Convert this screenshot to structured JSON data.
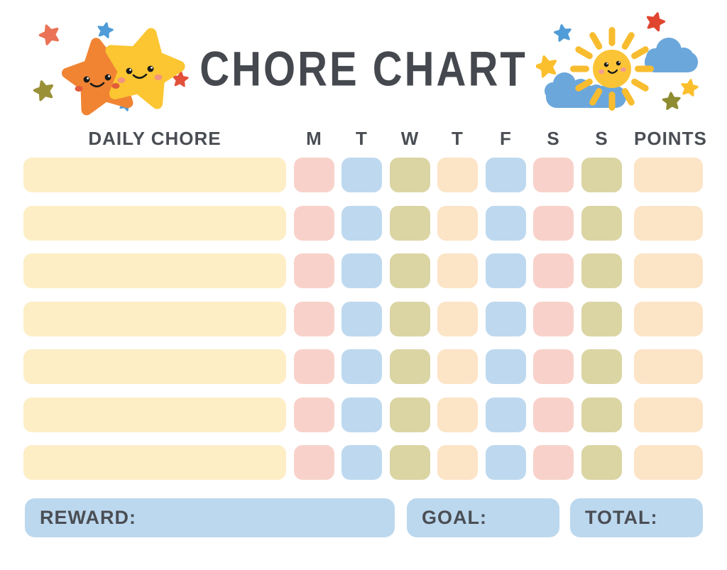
{
  "page": {
    "title": "CHORE CHART"
  },
  "table": {
    "chore_header": "DAILY CHORE",
    "day_headers": [
      "M",
      "T",
      "W",
      "T",
      "F",
      "S",
      "S"
    ],
    "points_header": "POINTS",
    "row_count": 7,
    "row_pattern": [
      "pink",
      "blue",
      "olive",
      "peach",
      "blue",
      "pink",
      "olive"
    ],
    "points_cell_color": "peach",
    "chore_bar_color": "cream"
  },
  "footer": {
    "reward_label": "REWARD:",
    "goal_label": "GOAL:",
    "total_label": "TOTAL:"
  },
  "colors": {
    "cream": "#fdeec6",
    "pink": "#f8d2ca",
    "blue": "#bed9ef",
    "olive": "#dbd5a4",
    "peach": "#fce4c7",
    "footer_blue": "#bcd8ee",
    "title_text": "#45484e",
    "label_text": "#4a4e54",
    "star_orange": "#f08433",
    "star_yellow": "#fbc632",
    "small_star_coral": "#ea7257",
    "small_star_blue": "#4f9cd8",
    "small_star_olive": "#9a9038",
    "small_star_red": "#e2503a",
    "sun_yellow": "#fbc437",
    "cloud_blue": "#6ba7db"
  },
  "decorations": {
    "left": "two-smiling-stars-with-sparkle-stars",
    "right": "smiling-sun-with-clouds-and-stars"
  }
}
